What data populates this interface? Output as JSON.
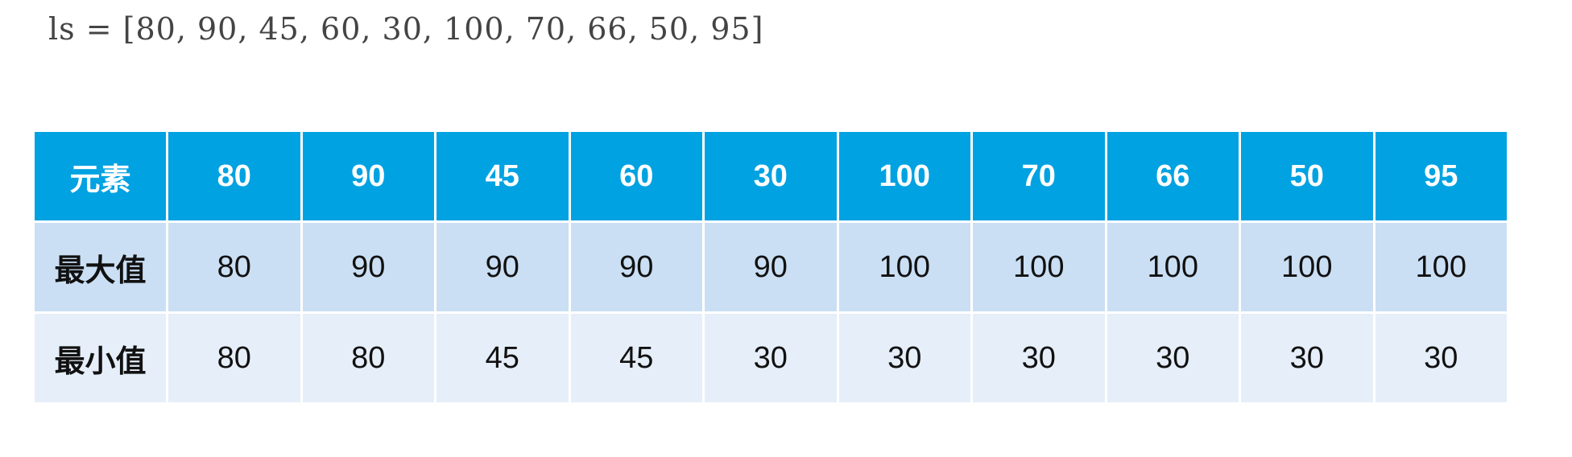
{
  "code": {
    "line": "ls = [80, 90, 45, 60, 30, 100, 70, 66, 50, 95]"
  },
  "table": {
    "rows": [
      {
        "header": "元素",
        "cells": [
          "80",
          "90",
          "45",
          "60",
          "30",
          "100",
          "70",
          "66",
          "50",
          "95"
        ]
      },
      {
        "header": "最大值",
        "cells": [
          "80",
          "90",
          "90",
          "90",
          "90",
          "100",
          "100",
          "100",
          "100",
          "100"
        ]
      },
      {
        "header": "最小值",
        "cells": [
          "80",
          "80",
          "45",
          "45",
          "30",
          "30",
          "30",
          "30",
          "30",
          "30"
        ]
      }
    ]
  },
  "colors": {
    "header_row": "#00a2e2",
    "max_row": "#cadff4",
    "min_row": "#e6eef9"
  }
}
